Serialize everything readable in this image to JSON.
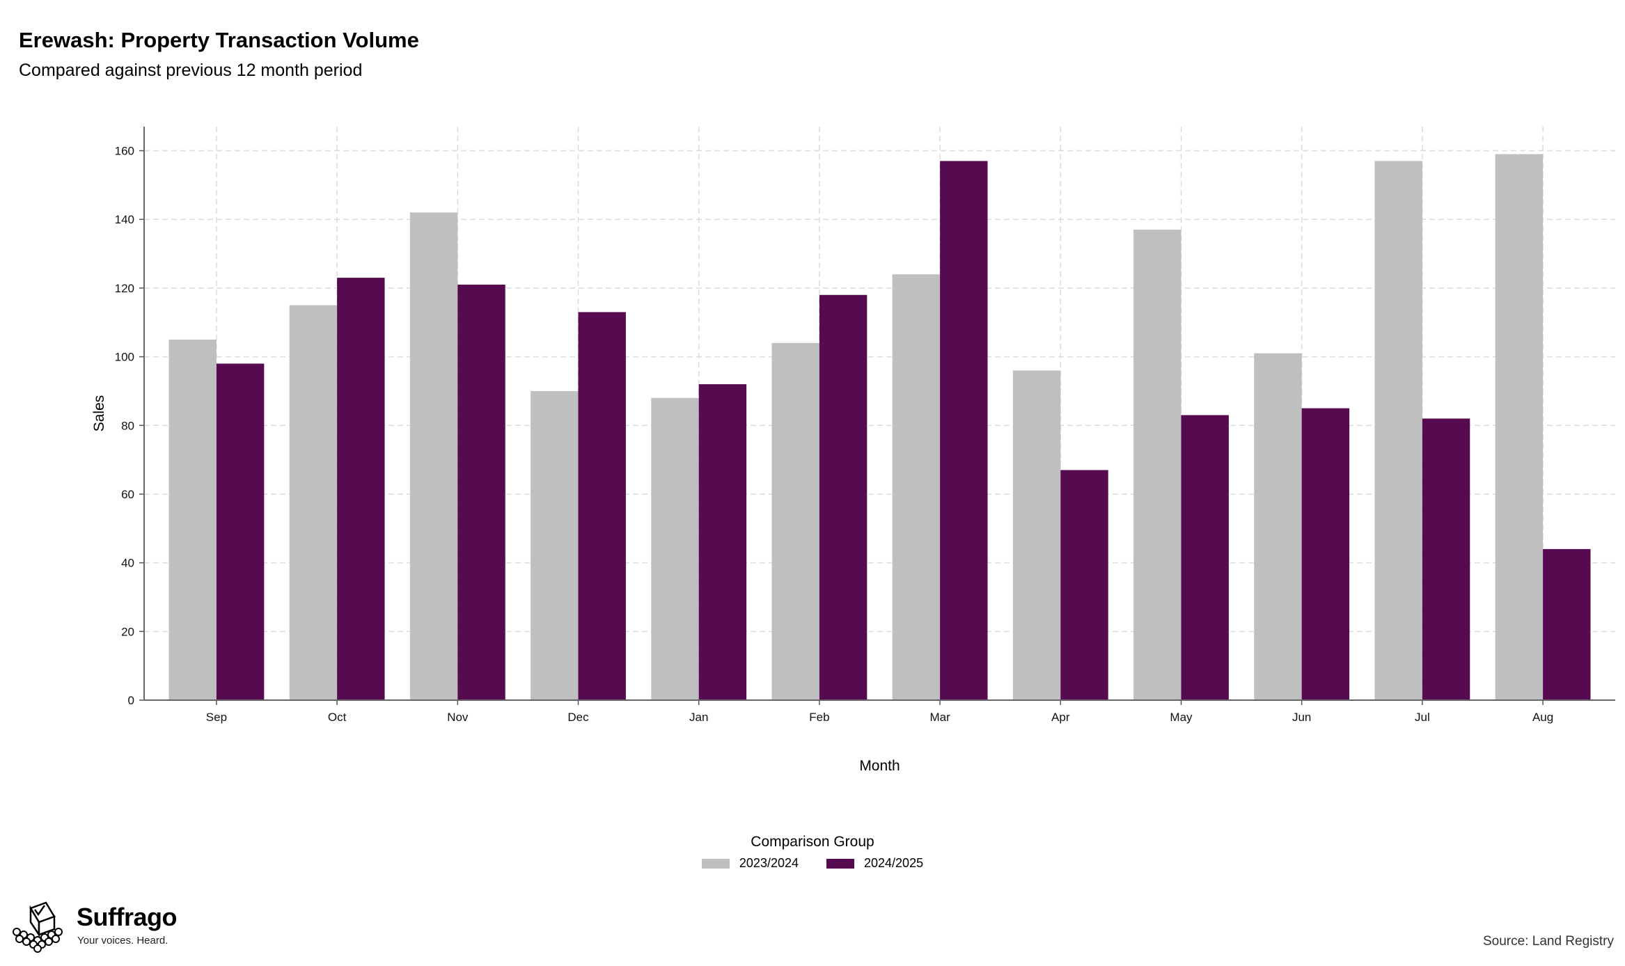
{
  "header": {
    "title": "Erewash: Property Transaction Volume",
    "subtitle": "Compared against previous 12 month period"
  },
  "chart_data": {
    "type": "bar",
    "title": "Erewash: Property Transaction Volume",
    "subtitle": "Compared against previous 12 month period",
    "xlabel": "Month",
    "ylabel": "Sales",
    "categories": [
      "Sep",
      "Oct",
      "Nov",
      "Dec",
      "Jan",
      "Feb",
      "Mar",
      "Apr",
      "May",
      "Jun",
      "Jul",
      "Aug"
    ],
    "series": [
      {
        "name": "2023/2024",
        "color": "#bfbfbf",
        "values": [
          105,
          115,
          142,
          90,
          88,
          104,
          124,
          96,
          137,
          101,
          157,
          159
        ]
      },
      {
        "name": "2024/2025",
        "color": "#560b51",
        "values": [
          98,
          123,
          121,
          113,
          92,
          118,
          157,
          67,
          83,
          85,
          82,
          44
        ]
      }
    ],
    "ylim": [
      0,
      167
    ],
    "yticks": [
      0,
      20,
      40,
      60,
      80,
      100,
      120,
      140,
      160
    ],
    "grid": true,
    "legend_title": "Comparison Group",
    "legend_position": "bottom"
  },
  "legend": {
    "title": "Comparison Group",
    "items": [
      {
        "label": "2023/2024",
        "color": "#bfbfbf"
      },
      {
        "label": "2024/2025",
        "color": "#560b51"
      }
    ]
  },
  "branding": {
    "name": "Suffrago",
    "tagline": "Your voices. Heard.",
    "icon": "ballot-box-icon"
  },
  "source": "Source: Land Registry"
}
